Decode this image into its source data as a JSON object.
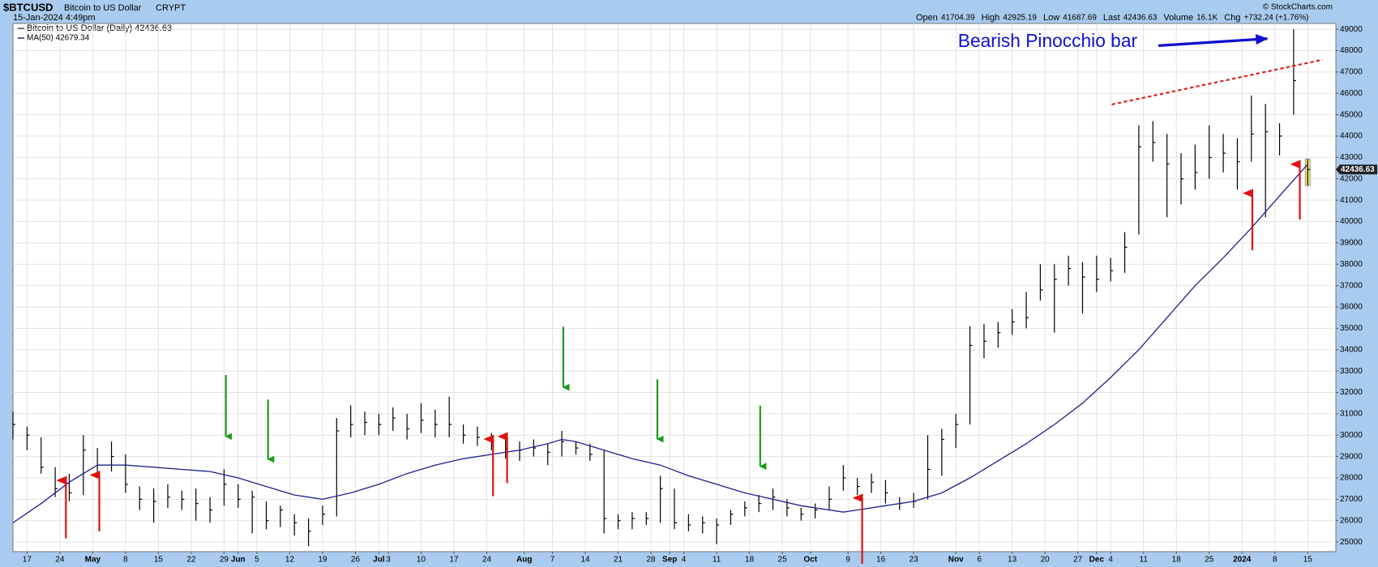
{
  "header": {
    "symbol": "$BTCUSD",
    "name": "Bitcoin to US Dollar",
    "exchange": "CRYPT",
    "timestamp": "15-Jan-2024 4:49pm",
    "quote": [
      {
        "label": "Open",
        "value": 41704.39
      },
      {
        "label": "High",
        "value": 42925.19
      },
      {
        "label": "Low",
        "value": 41687.69
      },
      {
        "label": "Last",
        "value": 42436.63
      },
      {
        "label": "Volume",
        "value": "16.1K"
      },
      {
        "label": "Chg",
        "value": "+732.24 (+1.76%)"
      }
    ],
    "copyright": "© StockCharts.com"
  },
  "chart_data": {
    "type": "ohlc",
    "annotation": "Bearish Pinocchio bar",
    "price_name": "Bitcoin to US Dollar (Daily) 42436.63",
    "color": "#000000",
    "grid": true,
    "x": [
      0,
      3,
      6,
      9,
      12,
      15,
      18,
      21,
      24,
      27,
      30,
      33,
      36,
      39,
      42,
      45,
      48,
      51,
      54,
      57,
      60,
      63,
      66,
      69,
      72,
      75,
      78,
      81,
      84,
      87,
      90,
      93,
      96,
      99,
      102,
      105,
      108,
      111,
      114,
      117,
      120,
      123,
      126,
      129,
      132,
      135,
      138,
      141,
      144,
      147,
      150,
      153,
      156,
      159,
      162,
      165,
      168,
      171,
      174,
      177,
      180,
      183,
      186,
      189,
      192,
      195,
      198,
      201,
      204,
      207,
      210,
      213,
      216,
      219,
      222,
      225,
      228,
      231,
      234,
      237,
      240,
      243,
      246,
      249,
      252,
      255,
      258,
      261,
      264,
      267,
      270,
      273,
      276
    ],
    "high": [
      31100,
      30400,
      29900,
      28500,
      28200,
      30000,
      29400,
      29700,
      29100,
      27600,
      27500,
      27700,
      27400,
      27500,
      27100,
      28400,
      27700,
      27400,
      26900,
      26700,
      26300,
      26100,
      26700,
      30800,
      31400,
      31100,
      31000,
      31300,
      31000,
      31500,
      31200,
      31800,
      30500,
      30400,
      30100,
      29800,
      29700,
      29800,
      29600,
      30200,
      29700,
      29600,
      29300,
      26300,
      26400,
      26400,
      28100,
      27500,
      26300,
      26200,
      26100,
      26500,
      26900,
      27200,
      27500,
      27000,
      26600,
      26800,
      27600,
      28600,
      28000,
      28200,
      27900,
      27100,
      27300,
      30000,
      30300,
      31000,
      35100,
      35200,
      35300,
      35900,
      36700,
      38000,
      38000,
      38400,
      38100,
      38400,
      38300,
      39500,
      44500,
      44700,
      44100,
      43200,
      43600,
      44500,
      44100,
      43900,
      45900,
      45500,
      44600,
      49000,
      42925.19
    ],
    "low": [
      29800,
      29300,
      28200,
      27100,
      26900,
      27200,
      28200,
      28300,
      27300,
      26500,
      25900,
      26600,
      26500,
      26000,
      25900,
      26700,
      26600,
      25400,
      25600,
      25700,
      25300,
      24800,
      25800,
      26200,
      29900,
      30000,
      30000,
      30200,
      29800,
      30100,
      29900,
      29900,
      29600,
      29500,
      29300,
      28900,
      28800,
      29000,
      28600,
      29000,
      29100,
      28800,
      25400,
      25600,
      25600,
      25800,
      25900,
      25600,
      25500,
      25400,
      24900,
      25800,
      26200,
      26400,
      26500,
      26200,
      26000,
      26100,
      26500,
      27400,
      27200,
      27300,
      26800,
      26500,
      26600,
      27000,
      28100,
      29400,
      30500,
      33600,
      34100,
      34700,
      35000,
      36300,
      34800,
      37000,
      35700,
      36700,
      37200,
      37600,
      39400,
      42800,
      40200,
      40800,
      41500,
      42000,
      42300,
      41500,
      42800,
      40200,
      43100,
      45000,
      41687.69
    ],
    "close": [
      30500,
      30000,
      28500,
      27500,
      27300,
      29300,
      28600,
      29000,
      27700,
      27000,
      26900,
      27100,
      27000,
      26800,
      26500,
      27700,
      27000,
      27100,
      26000,
      26500,
      25900,
      25500,
      26300,
      30200,
      30500,
      30600,
      30500,
      30800,
      30300,
      30700,
      30500,
      30500,
      30000,
      29900,
      29800,
      29400,
      29300,
      29400,
      29200,
      29700,
      29400,
      29100,
      26100,
      26000,
      26100,
      26100,
      27500,
      25900,
      25800,
      25900,
      25800,
      26300,
      26600,
      26800,
      27100,
      26600,
      26300,
      26500,
      27000,
      28000,
      27600,
      27800,
      27300,
      26800,
      26900,
      28400,
      29800,
      30500,
      34200,
      34400,
      34800,
      35300,
      35500,
      36800,
      37300,
      37800,
      37400,
      37300,
      37700,
      38800,
      43500,
      43700,
      42700,
      42000,
      42300,
      43000,
      43200,
      42800,
      44100,
      44200,
      44000,
      46600,
      42436.63
    ],
    "overlays": [
      {
        "name": "MA(50) 42679.34",
        "color": "#1f1f8f",
        "x": [
          0,
          6,
          12,
          18,
          24,
          30,
          36,
          42,
          48,
          54,
          60,
          66,
          72,
          78,
          84,
          90,
          96,
          102,
          108,
          114,
          117,
          120,
          126,
          132,
          138,
          144,
          150,
          156,
          162,
          168,
          174,
          177,
          180,
          186,
          192,
          198,
          204,
          210,
          216,
          222,
          228,
          234,
          240,
          246,
          252,
          258,
          264,
          270,
          276
        ],
        "values": [
          25900,
          26800,
          27800,
          28600,
          28600,
          28500,
          28400,
          28300,
          28000,
          27600,
          27200,
          27000,
          27300,
          27700,
          28200,
          28600,
          28900,
          29100,
          29300,
          29600,
          29800,
          29700,
          29300,
          28900,
          28600,
          28100,
          27700,
          27300,
          27000,
          26700,
          26500,
          26400,
          26500,
          26700,
          26900,
          27300,
          28000,
          28800,
          29600,
          30500,
          31500,
          32700,
          34000,
          35500,
          37000,
          38300,
          39700,
          41200,
          42679.34
        ]
      }
    ],
    "xlim": [
      0,
      282
    ],
    "ylim": [
      24550,
      49270
    ],
    "yticks": [
      25000,
      26000,
      27000,
      28000,
      29000,
      30000,
      31000,
      32000,
      33000,
      34000,
      35000,
      36000,
      37000,
      38000,
      39000,
      40000,
      41000,
      42000,
      43000,
      44000,
      45000,
      46000,
      47000,
      48000,
      49000
    ],
    "xticks": [
      {
        "value": 3,
        "label": "17"
      },
      {
        "value": 10,
        "label": "24"
      },
      {
        "value": 17,
        "label": "May"
      },
      {
        "value": 24,
        "label": "8"
      },
      {
        "value": 31,
        "label": "15"
      },
      {
        "value": 38,
        "label": "22"
      },
      {
        "value": 45,
        "label": "29"
      },
      {
        "value": 48,
        "label": "Jun"
      },
      {
        "value": 52,
        "label": "5"
      },
      {
        "value": 59,
        "label": "12"
      },
      {
        "value": 66,
        "label": "19"
      },
      {
        "value": 73,
        "label": "26"
      },
      {
        "value": 78,
        "label": "Jul"
      },
      {
        "value": 80,
        "label": "3"
      },
      {
        "value": 87,
        "label": "10"
      },
      {
        "value": 94,
        "label": "17"
      },
      {
        "value": 101,
        "label": "24"
      },
      {
        "value": 109,
        "label": "Aug"
      },
      {
        "value": 115,
        "label": "7"
      },
      {
        "value": 122,
        "label": "14"
      },
      {
        "value": 129,
        "label": "21"
      },
      {
        "value": 136,
        "label": "28"
      },
      {
        "value": 140,
        "label": "Sep"
      },
      {
        "value": 143,
        "label": "4"
      },
      {
        "value": 150,
        "label": "11"
      },
      {
        "value": 157,
        "label": "18"
      },
      {
        "value": 164,
        "label": "25"
      },
      {
        "value": 170,
        "label": "Oct"
      },
      {
        "value": 178,
        "label": "9"
      },
      {
        "value": 185,
        "label": "16"
      },
      {
        "value": 192,
        "label": "23"
      },
      {
        "value": 201,
        "label": "Nov"
      },
      {
        "value": 206,
        "label": "6"
      },
      {
        "value": 213,
        "label": "13"
      },
      {
        "value": 220,
        "label": "20"
      },
      {
        "value": 227,
        "label": "27"
      },
      {
        "value": 231,
        "label": "Dec"
      },
      {
        "value": 234,
        "label": "4"
      },
      {
        "value": 241,
        "label": "11"
      },
      {
        "value": 248,
        "label": "18"
      },
      {
        "value": 255,
        "label": "25"
      },
      {
        "value": 262,
        "label": "2024"
      },
      {
        "value": 269,
        "label": "8"
      },
      {
        "value": 276,
        "label": "15"
      }
    ]
  }
}
